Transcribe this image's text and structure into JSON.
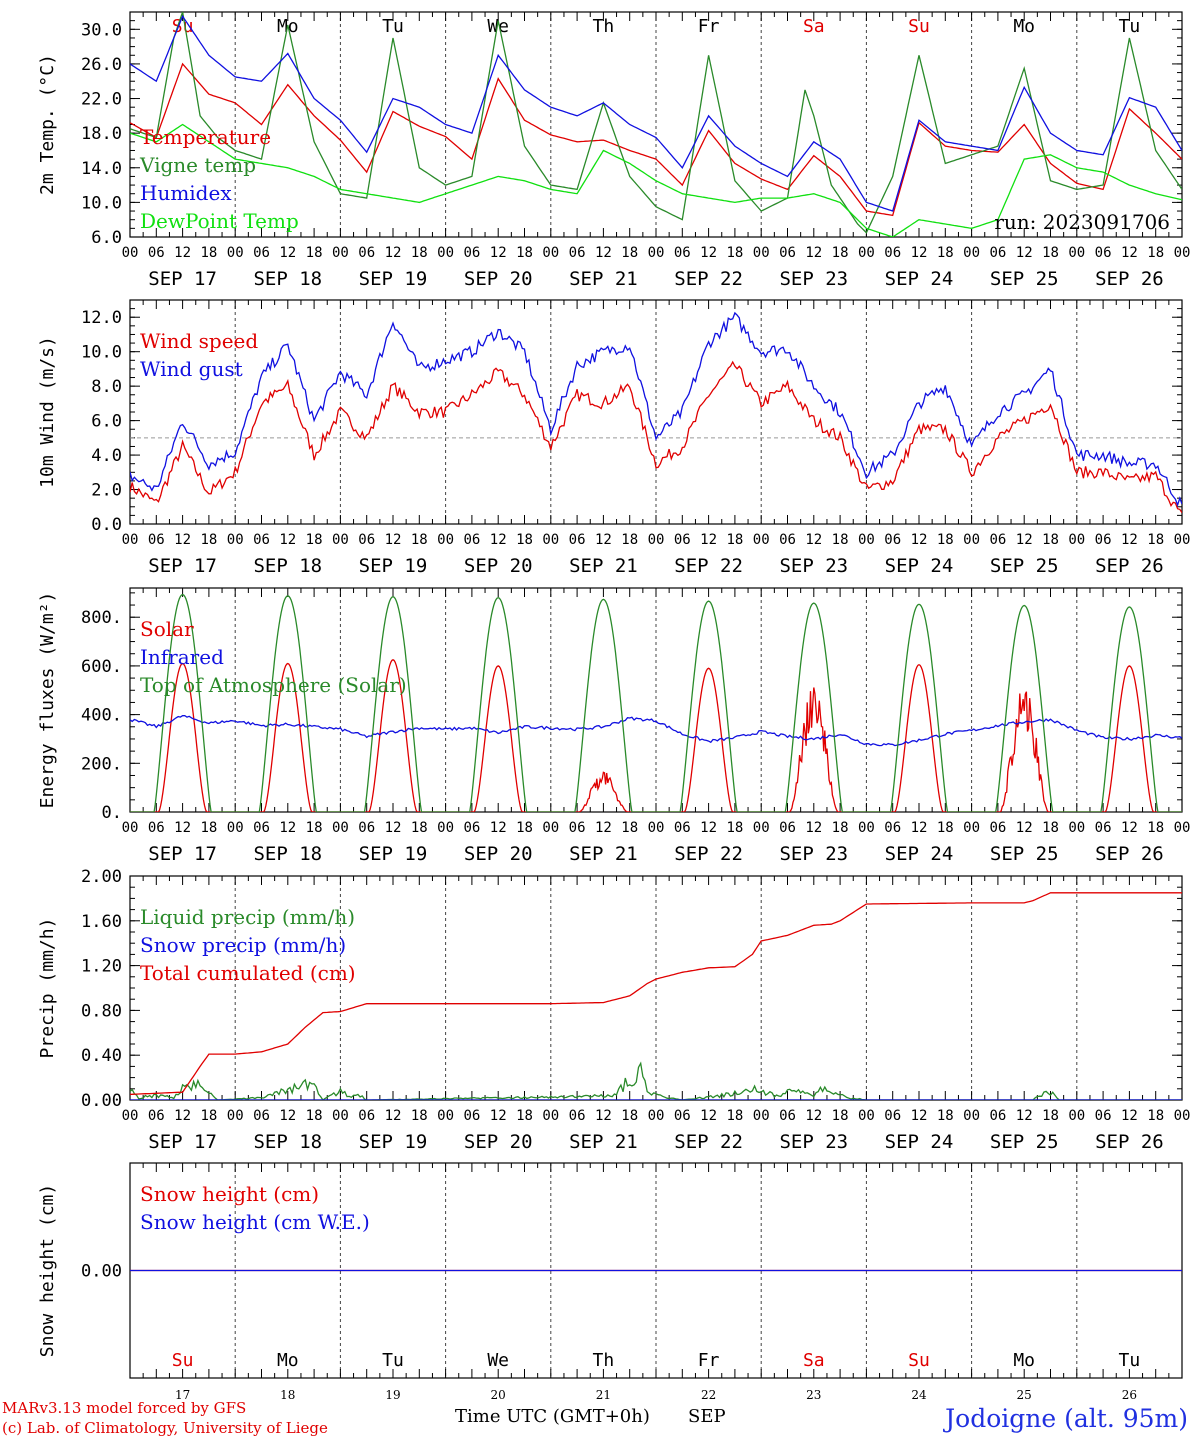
{
  "x_axis": {
    "hour_labels": [
      "00",
      "06",
      "12",
      "18"
    ],
    "final_hour_label": "00",
    "date_labels": [
      "SEP 17",
      "SEP 18",
      "SEP 19",
      "SEP 20",
      "SEP 21",
      "SEP 22",
      "SEP 23",
      "SEP 24",
      "SEP 25",
      "SEP 26"
    ],
    "weekdays": [
      {
        "label": "Su",
        "color": "#e00000"
      },
      {
        "label": "Mo",
        "color": "#000000"
      },
      {
        "label": "Tu",
        "color": "#000000"
      },
      {
        "label": "We",
        "color": "#000000"
      },
      {
        "label": "Th",
        "color": "#000000"
      },
      {
        "label": "Fr",
        "color": "#000000"
      },
      {
        "label": "Sa",
        "color": "#e00000"
      },
      {
        "label": "Su",
        "color": "#e00000"
      },
      {
        "label": "Mo",
        "color": "#000000"
      },
      {
        "label": "Tu",
        "color": "#000000"
      }
    ],
    "day_numbers": [
      "17",
      "18",
      "19",
      "20",
      "21",
      "22",
      "23",
      "24",
      "25",
      "26"
    ],
    "title": "Time UTC (GMT+0h)",
    "month": "SEP"
  },
  "footer": {
    "model_line": "MARv3.13 model forced by GFS",
    "credit_line": "(c) Lab. of Climatology, University of Liege",
    "station": "Jodoigne (alt. 95m)"
  },
  "chart_data": [
    {
      "type": "line",
      "title": "",
      "ylabel": "2m Temp. (°C)",
      "ylim": [
        6,
        32
      ],
      "yticks": [
        "6.0",
        "10.0",
        "14.0",
        "18.0",
        "22.0",
        "26.0",
        "30.0"
      ],
      "yticks_values": [
        6,
        10,
        14,
        18,
        22,
        26,
        30
      ],
      "annotation": "run: 2023091706",
      "legend_position": "top-left",
      "series": [
        {
          "name": "Temperature",
          "color": "#e00000",
          "x": [
            0,
            6,
            12,
            18,
            24,
            30,
            36,
            42,
            48,
            54,
            60,
            66,
            72,
            78,
            84,
            90,
            96,
            102,
            108,
            114,
            120,
            126,
            132,
            138,
            144,
            150,
            156,
            162,
            168,
            174,
            180,
            186,
            192,
            198,
            204,
            210,
            216,
            222,
            228,
            234,
            240
          ],
          "values": [
            19.2,
            17.5,
            26,
            22.5,
            21.5,
            19,
            23.6,
            20,
            17.2,
            13.5,
            20.5,
            18.8,
            17.6,
            15,
            24.3,
            19.5,
            17.8,
            17,
            17.2,
            16,
            15,
            12,
            18.3,
            14.5,
            12.7,
            11.5,
            15.4,
            13,
            9,
            8.5,
            19.2,
            16.5,
            16,
            15.8,
            19,
            14.5,
            12.2,
            11.5,
            20.8,
            18,
            15
          ]
        },
        {
          "name": "Vigne temp",
          "color": "#2a8a2a",
          "x": [
            0,
            6,
            10,
            12,
            16,
            20,
            24,
            30,
            36,
            42,
            48,
            54,
            60,
            66,
            72,
            78,
            84,
            90,
            96,
            102,
            108,
            114,
            120,
            126,
            132,
            138,
            144,
            150,
            154,
            156,
            160,
            166,
            168,
            174,
            180,
            186,
            192,
            198,
            204,
            210,
            216,
            222,
            228,
            234,
            240
          ],
          "values": [
            18.5,
            17.5,
            29,
            32,
            20,
            17.5,
            16,
            15,
            30.5,
            17,
            11,
            10.5,
            29,
            14,
            12,
            13,
            31,
            16.5,
            12,
            11.5,
            21.5,
            13,
            9.5,
            8,
            27,
            12.5,
            9,
            10.5,
            23,
            20,
            12,
            7.5,
            6.5,
            13,
            27,
            14.5,
            15.5,
            16.5,
            25.5,
            12.5,
            11.5,
            12,
            29,
            16,
            11.5
          ]
        },
        {
          "name": "Humidex",
          "color": "#1010e0",
          "x": [
            0,
            6,
            12,
            18,
            24,
            30,
            36,
            42,
            48,
            54,
            60,
            66,
            72,
            78,
            84,
            90,
            96,
            102,
            108,
            114,
            120,
            126,
            132,
            138,
            144,
            150,
            156,
            162,
            168,
            174,
            180,
            186,
            192,
            198,
            204,
            210,
            216,
            222,
            228,
            234,
            240
          ],
          "values": [
            26,
            24,
            31.5,
            27,
            24.5,
            24,
            27.2,
            22,
            19.5,
            15.8,
            22,
            21,
            19,
            18,
            27,
            23,
            21,
            20,
            21.5,
            19,
            17.5,
            14,
            20,
            16.5,
            14.5,
            13,
            17,
            15,
            10,
            9,
            19.5,
            17,
            16.5,
            16,
            23.3,
            18,
            16,
            15.5,
            22.1,
            21,
            16
          ]
        },
        {
          "name": "DewPoint Temp",
          "color": "#10e010",
          "x": [
            0,
            6,
            12,
            18,
            24,
            30,
            36,
            42,
            48,
            54,
            60,
            66,
            72,
            78,
            84,
            90,
            96,
            102,
            108,
            114,
            120,
            126,
            132,
            138,
            144,
            150,
            156,
            162,
            168,
            174,
            180,
            186,
            192,
            198,
            204,
            210,
            216,
            222,
            228,
            234,
            240
          ],
          "values": [
            18,
            17,
            19,
            17,
            15,
            14.5,
            14,
            13,
            11.5,
            11,
            10.5,
            10,
            11,
            12,
            13,
            12.5,
            11.5,
            11,
            16,
            14.5,
            12.5,
            11,
            10.5,
            10,
            10.5,
            10.5,
            11,
            10,
            7,
            6,
            8,
            7.5,
            7,
            8,
            15,
            15.5,
            14,
            13.5,
            12,
            11,
            10.3
          ]
        }
      ]
    },
    {
      "type": "line",
      "title": "",
      "ylabel": "10m Wind (m/s)",
      "ylim": [
        0,
        13
      ],
      "yticks": [
        "0.0",
        "2.0",
        "4.0",
        "6.0",
        "8.0",
        "10.0",
        "12.0"
      ],
      "yticks_values": [
        0,
        2,
        4,
        6,
        8,
        10,
        12
      ],
      "reference_line": 5,
      "legend_position": "top-left",
      "series": [
        {
          "name": "Wind speed",
          "color": "#e00000",
          "x": [
            0,
            6,
            12,
            18,
            24,
            30,
            36,
            42,
            48,
            54,
            60,
            66,
            72,
            78,
            84,
            90,
            96,
            102,
            108,
            114,
            120,
            126,
            132,
            138,
            144,
            150,
            156,
            162,
            168,
            174,
            180,
            186,
            192,
            198,
            204,
            210,
            216,
            222,
            228,
            234,
            240
          ],
          "values": [
            2.2,
            1.2,
            4.5,
            1.8,
            3,
            7,
            8,
            4,
            6.5,
            5,
            8,
            6.5,
            6.5,
            7.5,
            8.8,
            7.5,
            4.5,
            7.5,
            7,
            8,
            3.5,
            4.5,
            7.5,
            9.2,
            7,
            8,
            6,
            5,
            2,
            2.5,
            5.5,
            5.5,
            3,
            5,
            6,
            7,
            3,
            3,
            2.5,
            2.8,
            0.4
          ]
        },
        {
          "name": "Wind gust",
          "color": "#1010e0",
          "x": [
            0,
            6,
            12,
            18,
            24,
            30,
            36,
            42,
            48,
            54,
            60,
            66,
            72,
            78,
            84,
            90,
            96,
            102,
            108,
            114,
            120,
            126,
            132,
            138,
            144,
            150,
            156,
            162,
            168,
            174,
            180,
            186,
            192,
            198,
            204,
            210,
            216,
            222,
            228,
            234,
            240
          ],
          "values": [
            2.8,
            2,
            6,
            3.5,
            4.2,
            8.5,
            10.4,
            6,
            8.8,
            7.5,
            11.8,
            9,
            9.5,
            10,
            11.2,
            10,
            5.5,
            9.2,
            10,
            10.4,
            5,
            6.5,
            10.5,
            12,
            10,
            10.2,
            8,
            6.5,
            3,
            4,
            7,
            8,
            4.5,
            6.5,
            7.5,
            9,
            4,
            4,
            3.5,
            3.5,
            1
          ]
        }
      ]
    },
    {
      "type": "line",
      "title": "",
      "ylabel": "Energy fluxes (W/m²)",
      "ylim": [
        0,
        920
      ],
      "yticks": [
        "0.",
        "200.",
        "400.",
        "600.",
        "800."
      ],
      "yticks_values": [
        0,
        200,
        400,
        600,
        800
      ],
      "legend_position": "top-left",
      "series": [
        {
          "name": "Solar",
          "color": "#e00000",
          "day_peaks": [
            610,
            610,
            625,
            600,
            175,
            590,
            530,
            605,
            545,
            600
          ]
        },
        {
          "name": "Infrared",
          "color": "#1010e0",
          "x": [
            0,
            6,
            12,
            18,
            24,
            30,
            36,
            42,
            48,
            54,
            60,
            66,
            72,
            78,
            84,
            90,
            96,
            102,
            108,
            114,
            120,
            126,
            132,
            138,
            144,
            150,
            156,
            162,
            168,
            174,
            180,
            186,
            192,
            198,
            204,
            210,
            216,
            222,
            228,
            234,
            240
          ],
          "values": [
            380,
            350,
            395,
            365,
            375,
            355,
            360,
            350,
            340,
            310,
            330,
            345,
            340,
            345,
            325,
            350,
            345,
            340,
            350,
            385,
            375,
            320,
            290,
            305,
            330,
            310,
            300,
            320,
            280,
            275,
            295,
            320,
            335,
            355,
            370,
            380,
            335,
            305,
            300,
            315,
            305
          ]
        },
        {
          "name": "Top of Atmosphere (Solar)",
          "color": "#2a8a2a",
          "day_peaks": [
            893,
            888,
            884,
            880,
            873,
            866,
            858,
            853,
            848,
            842
          ]
        }
      ]
    },
    {
      "type": "line",
      "title": "",
      "ylabel": "Precip (mm/h)",
      "ylim": [
        0,
        2
      ],
      "yticks": [
        "0.00",
        "0.40",
        "0.80",
        "1.20",
        "1.60",
        "2.00"
      ],
      "yticks_values": [
        0,
        0.4,
        0.8,
        1.2,
        1.6,
        2.0
      ],
      "legend_position": "top-left",
      "series": [
        {
          "name": "Liquid precip (mm/h)",
          "color": "#2a8a2a",
          "x": [
            0,
            2,
            4,
            8,
            10,
            12,
            14,
            16,
            18,
            20,
            30,
            34,
            38,
            40,
            42,
            44,
            48,
            50,
            52,
            54,
            110,
            112,
            116,
            118,
            120,
            122,
            126,
            138,
            140,
            142,
            144,
            148,
            150,
            156,
            158,
            160,
            162,
            164,
            166,
            168,
            206,
            208,
            210,
            212
          ],
          "values": [
            0.15,
            0.02,
            0.05,
            0.06,
            0.02,
            0.15,
            0.2,
            0.22,
            0.1,
            0.0,
            0.03,
            0.1,
            0.17,
            0.2,
            0.16,
            0.0,
            0.12,
            0.05,
            0.08,
            0.0,
            0.05,
            0.14,
            0.4,
            0.12,
            0.08,
            0.04,
            0.0,
            0.08,
            0.12,
            0.14,
            0.1,
            0.05,
            0.14,
            0.05,
            0.14,
            0.1,
            0.06,
            0.02,
            0.02,
            0.0,
            0.0,
            0.08,
            0.1,
            0.0
          ]
        },
        {
          "name": "Snow precip (mm/h)",
          "color": "#1010e0",
          "x": [
            0,
            240
          ],
          "values": [
            0,
            0
          ]
        },
        {
          "name": "Total cumulated (cm)",
          "color": "#e00000",
          "x": [
            0,
            12,
            16,
            18,
            24,
            30,
            36,
            40,
            44,
            48,
            54,
            60,
            72,
            96,
            108,
            114,
            118,
            120,
            126,
            132,
            138,
            142,
            144,
            150,
            156,
            160,
            162,
            168,
            192,
            204,
            206,
            210,
            216,
            240
          ],
          "values": [
            0.05,
            0.07,
            0.3,
            0.41,
            0.41,
            0.43,
            0.5,
            0.65,
            0.78,
            0.79,
            0.86,
            0.86,
            0.86,
            0.86,
            0.87,
            0.93,
            1.04,
            1.08,
            1.14,
            1.18,
            1.19,
            1.3,
            1.42,
            1.47,
            1.56,
            1.57,
            1.6,
            1.75,
            1.76,
            1.76,
            1.78,
            1.85,
            1.85,
            1.85
          ]
        }
      ]
    },
    {
      "type": "line",
      "title": "",
      "ylabel": "Snow height (cm)",
      "ylim": [
        -1,
        1
      ],
      "yticks": [
        "0.00"
      ],
      "yticks_values": [
        0
      ],
      "legend_position": "top-left",
      "series": [
        {
          "name": "Snow height (cm)",
          "color": "#e00000",
          "x": [
            0,
            240
          ],
          "values": [
            0,
            0
          ]
        },
        {
          "name": "Snow height (cm W.E.)",
          "color": "#1010e0",
          "x": [
            0,
            240
          ],
          "values": [
            0,
            0
          ]
        }
      ]
    }
  ]
}
